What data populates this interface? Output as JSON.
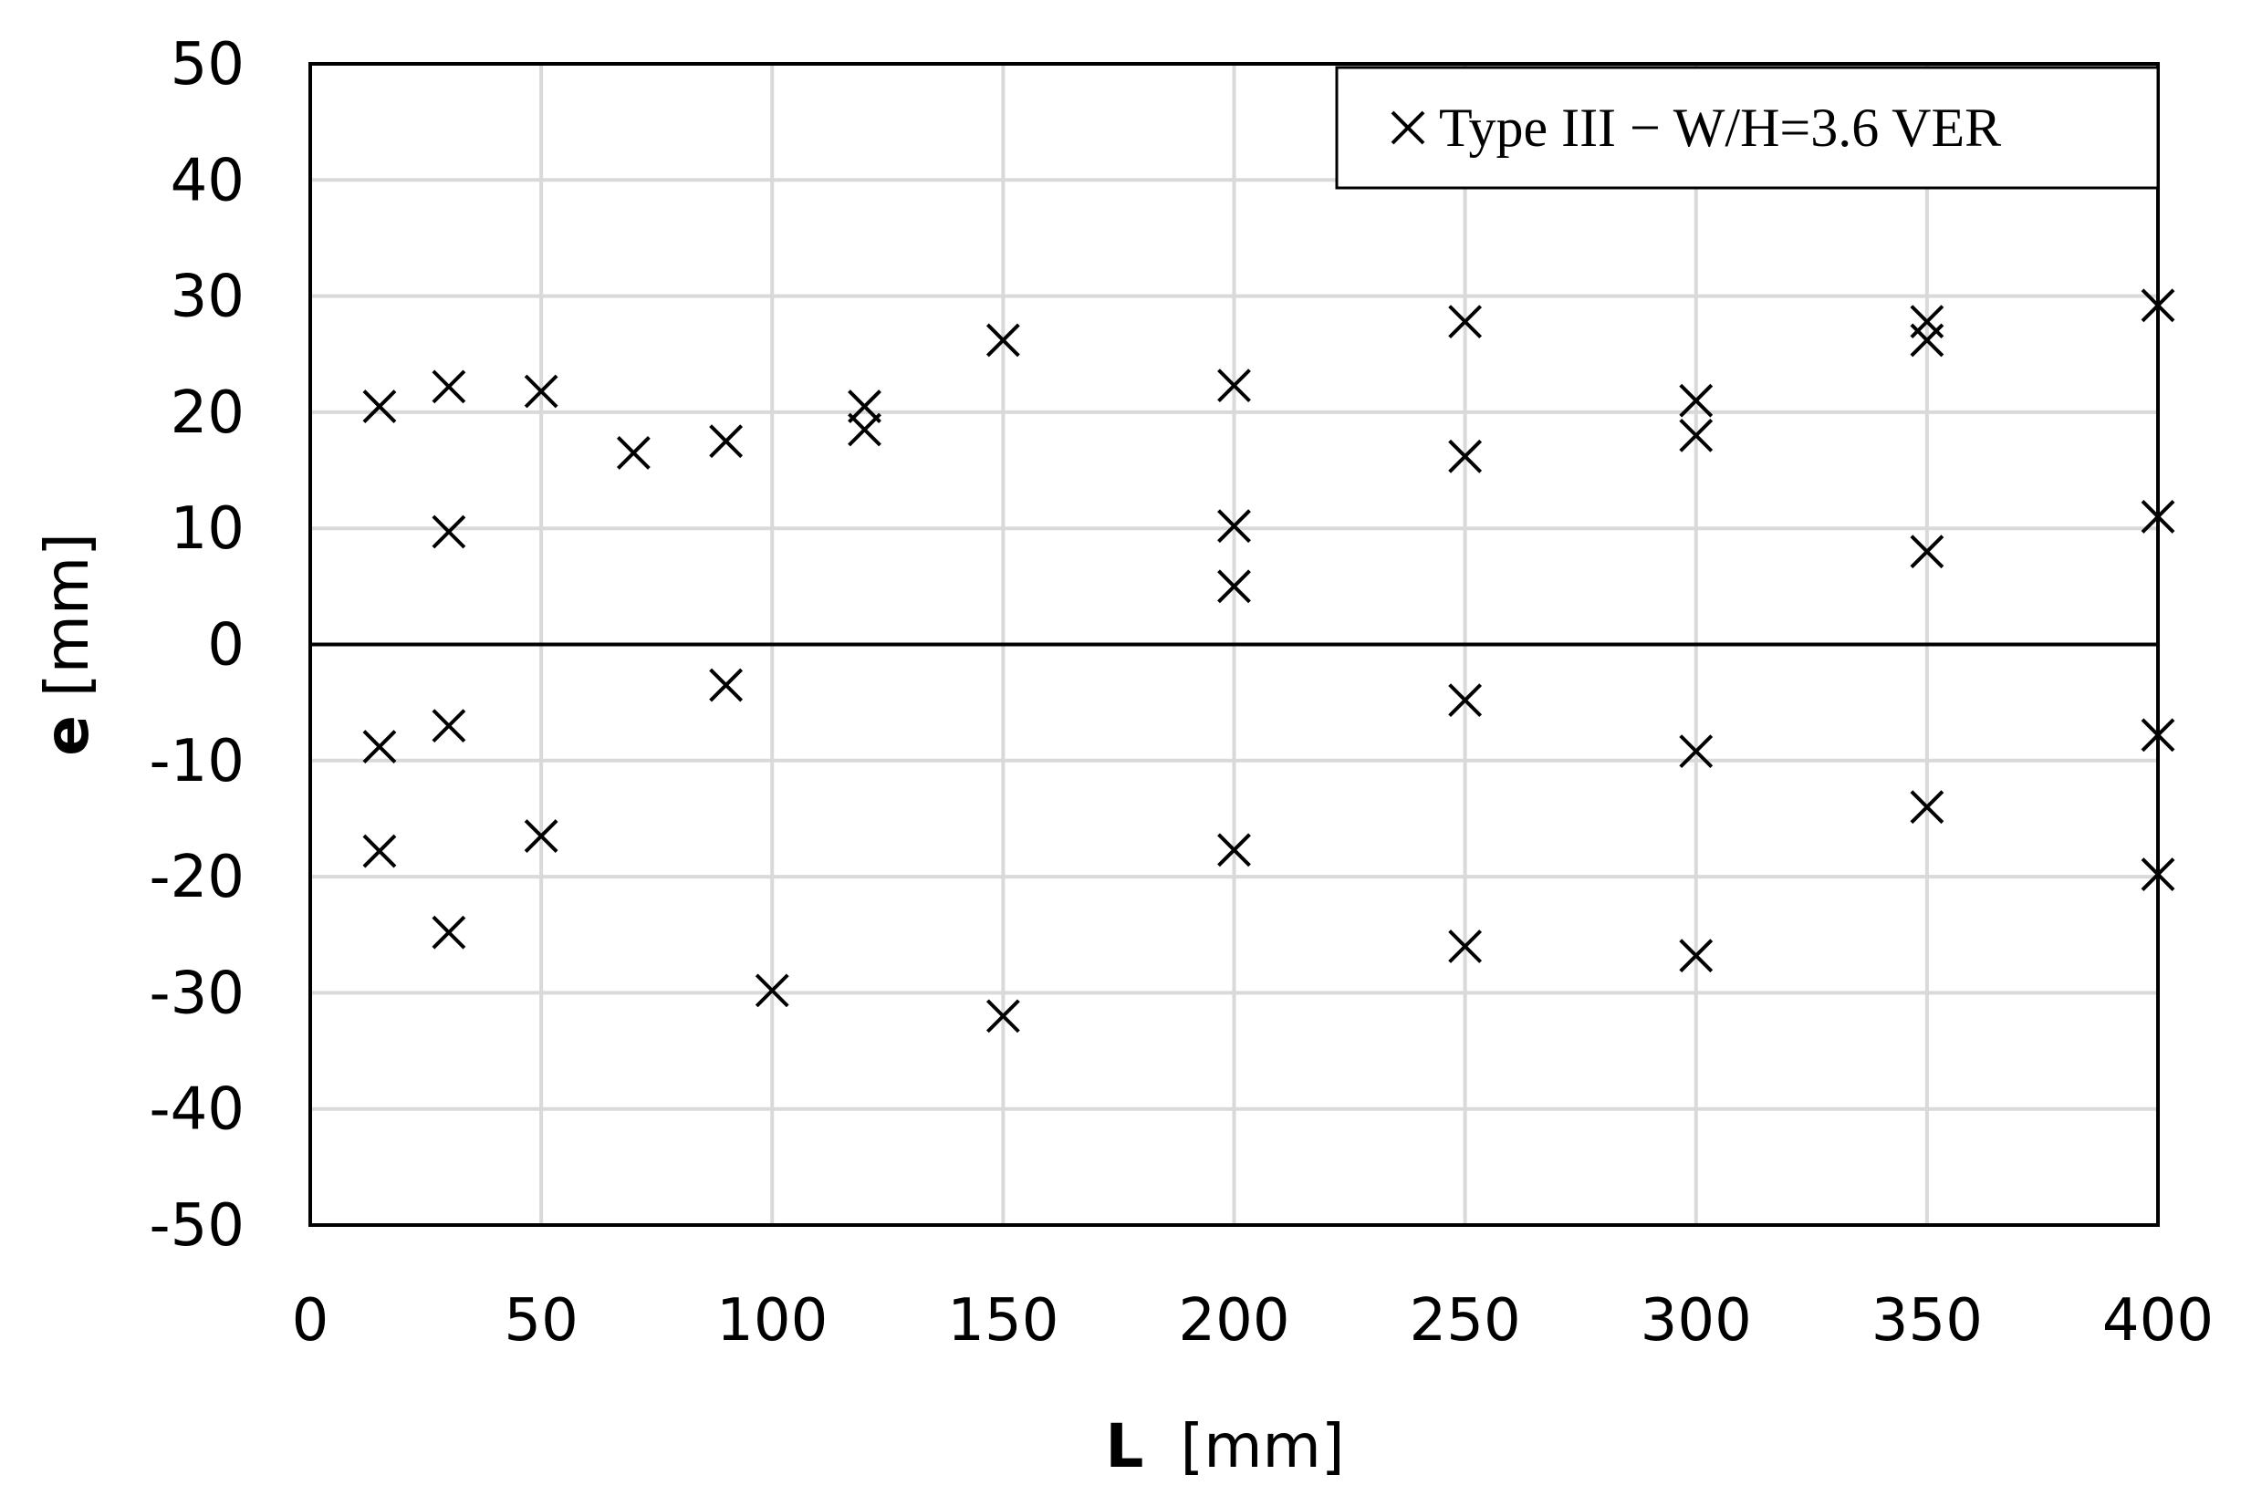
{
  "chart_data": {
    "type": "scatter",
    "title": "",
    "xlabel": {
      "symbol": "L",
      "unit": "[mm]"
    },
    "ylabel": {
      "symbol": "e",
      "unit": "[mm]"
    },
    "xlim": [
      0,
      400
    ],
    "ylim": [
      -50,
      50
    ],
    "xticks": [
      0,
      50,
      100,
      150,
      200,
      250,
      300,
      350,
      400
    ],
    "yticks": [
      -50,
      -40,
      -30,
      -20,
      -10,
      0,
      10,
      20,
      30,
      40,
      50
    ],
    "grid": true,
    "legend_position": "top-right",
    "marker": "x",
    "colors": {
      "grid": "#d9d9d9",
      "axes": "#000000",
      "marker": "#000000",
      "background": "#ffffff"
    },
    "series": [
      {
        "name": "Type III − W/H=3.6 VER",
        "points": [
          {
            "x": 15,
            "y": 20.5
          },
          {
            "x": 15,
            "y": -8.8
          },
          {
            "x": 15,
            "y": -17.8
          },
          {
            "x": 30,
            "y": 22.2
          },
          {
            "x": 30,
            "y": 9.7
          },
          {
            "x": 30,
            "y": -7.0
          },
          {
            "x": 30,
            "y": -24.8
          },
          {
            "x": 50,
            "y": 21.8
          },
          {
            "x": 50,
            "y": -16.5
          },
          {
            "x": 70,
            "y": 16.5
          },
          {
            "x": 90,
            "y": 17.5
          },
          {
            "x": 90,
            "y": -3.5
          },
          {
            "x": 100,
            "y": -29.8
          },
          {
            "x": 120,
            "y": 20.5
          },
          {
            "x": 120,
            "y": 18.5
          },
          {
            "x": 150,
            "y": 26.2
          },
          {
            "x": 150,
            "y": -32.0
          },
          {
            "x": 200,
            "y": 22.3
          },
          {
            "x": 200,
            "y": 10.2
          },
          {
            "x": 200,
            "y": 5.0
          },
          {
            "x": 200,
            "y": -17.7
          },
          {
            "x": 250,
            "y": 27.8
          },
          {
            "x": 250,
            "y": 16.2
          },
          {
            "x": 250,
            "y": -4.8
          },
          {
            "x": 250,
            "y": -26.0
          },
          {
            "x": 300,
            "y": 21.0
          },
          {
            "x": 300,
            "y": 18.0
          },
          {
            "x": 300,
            "y": -9.2
          },
          {
            "x": 300,
            "y": -26.8
          },
          {
            "x": 350,
            "y": 27.8
          },
          {
            "x": 350,
            "y": 26.2
          },
          {
            "x": 350,
            "y": 8.0
          },
          {
            "x": 350,
            "y": -14.0
          },
          {
            "x": 400,
            "y": 29.2
          },
          {
            "x": 400,
            "y": 11.0
          },
          {
            "x": 400,
            "y": -7.8
          },
          {
            "x": 400,
            "y": -19.8
          }
        ]
      }
    ]
  }
}
